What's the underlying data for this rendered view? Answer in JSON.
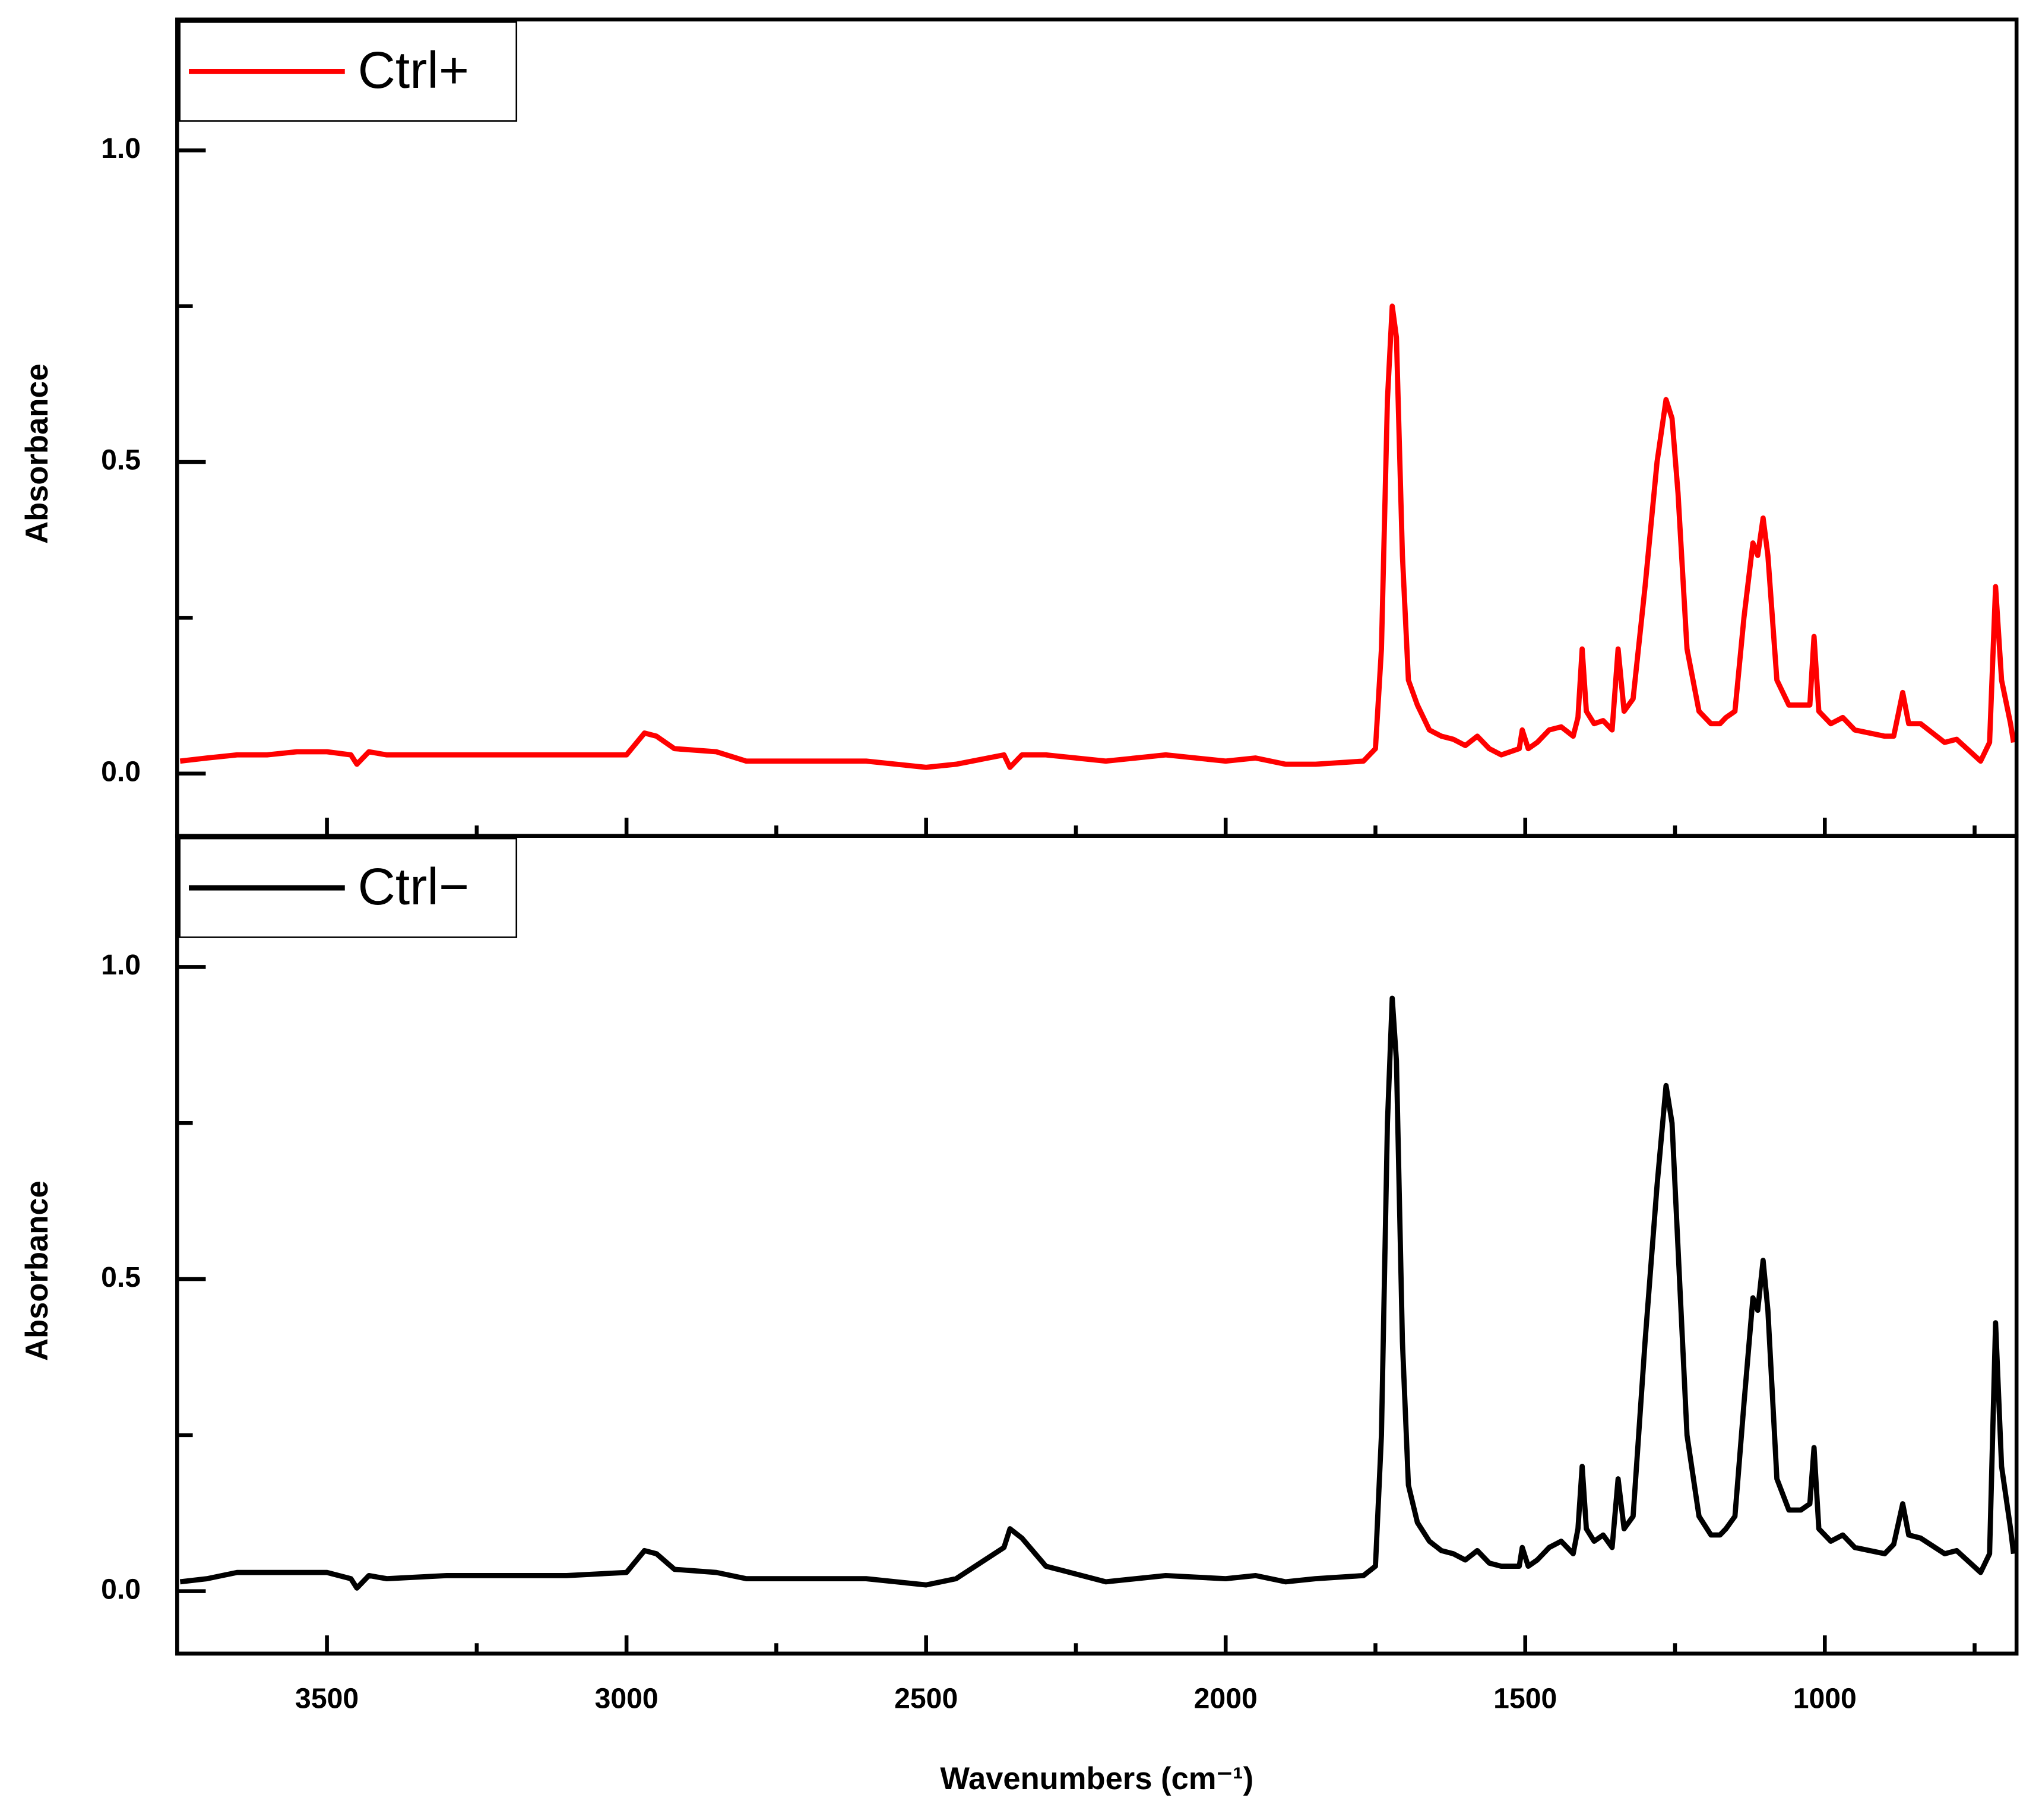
{
  "chart_data": [
    {
      "type": "line",
      "ylabel": "Absorbance",
      "legend": "upper left",
      "xlim": [
        3750,
        680
      ],
      "ylim": [
        -0.1,
        1.21
      ],
      "yticks": [
        {
          "value": 0,
          "label": "0.0"
        },
        {
          "value": 0.5,
          "label": "0.5"
        },
        {
          "value": 1,
          "label": "1.0"
        }
      ],
      "yminor": [
        0.25,
        0.75
      ],
      "x": [
        3745,
        3700,
        3650,
        3600,
        3550,
        3500,
        3460,
        3450,
        3430,
        3400,
        3300,
        3200,
        3100,
        3000,
        2970,
        2950,
        2920,
        2850,
        2800,
        2700,
        2600,
        2500,
        2450,
        2370,
        2360,
        2340,
        2300,
        2200,
        2100,
        2000,
        1950,
        1900,
        1850,
        1770,
        1750,
        1740,
        1730,
        1722,
        1715,
        1705,
        1695,
        1680,
        1660,
        1640,
        1620,
        1600,
        1580,
        1560,
        1540,
        1510,
        1505,
        1495,
        1480,
        1460,
        1440,
        1420,
        1412,
        1405,
        1398,
        1385,
        1370,
        1355,
        1345,
        1335,
        1320,
        1300,
        1280,
        1265,
        1255,
        1245,
        1230,
        1210,
        1190,
        1175,
        1165,
        1150,
        1135,
        1120,
        1112,
        1103,
        1095,
        1080,
        1060,
        1040,
        1025,
        1018,
        1010,
        990,
        970,
        950,
        900,
        885,
        870,
        860,
        840,
        800,
        780,
        740,
        725,
        715,
        705,
        690,
        685
      ],
      "series": [
        {
          "name": "Ctrl+",
          "color": "#ff0000",
          "values": [
            0.02,
            0.025,
            0.03,
            0.03,
            0.035,
            0.035,
            0.03,
            0.015,
            0.035,
            0.03,
            0.03,
            0.03,
            0.03,
            0.03,
            0.065,
            0.06,
            0.04,
            0.035,
            0.02,
            0.02,
            0.02,
            0.01,
            0.015,
            0.03,
            0.01,
            0.03,
            0.03,
            0.02,
            0.03,
            0.02,
            0.025,
            0.015,
            0.015,
            0.02,
            0.04,
            0.2,
            0.6,
            0.75,
            0.7,
            0.35,
            0.15,
            0.11,
            0.07,
            0.06,
            0.055,
            0.045,
            0.06,
            0.04,
            0.03,
            0.04,
            0.07,
            0.04,
            0.05,
            0.07,
            0.075,
            0.06,
            0.09,
            0.2,
            0.1,
            0.08,
            0.085,
            0.07,
            0.2,
            0.1,
            0.12,
            0.3,
            0.5,
            0.6,
            0.57,
            0.45,
            0.2,
            0.1,
            0.08,
            0.08,
            0.09,
            0.1,
            0.25,
            0.37,
            0.35,
            0.41,
            0.35,
            0.15,
            0.11,
            0.11,
            0.11,
            0.22,
            0.1,
            0.08,
            0.09,
            0.07,
            0.06,
            0.06,
            0.13,
            0.08,
            0.08,
            0.05,
            0.055,
            0.02,
            0.05,
            0.3,
            0.15,
            0.08,
            0.05
          ]
        }
      ]
    },
    {
      "type": "line",
      "ylabel": "Absorbance",
      "xlabel": "Wavenumbers (cm⁻¹)",
      "legend": "upper left",
      "xlim": [
        3750,
        680
      ],
      "ylim": [
        -0.1,
        1.21
      ],
      "yticks": [
        {
          "value": 0,
          "label": "0.0"
        },
        {
          "value": 0.5,
          "label": "0.5"
        },
        {
          "value": 1,
          "label": "1.0"
        }
      ],
      "yminor": [
        0.25,
        0.75
      ],
      "xticks": [
        3500,
        3000,
        2500,
        2000,
        1500,
        1000
      ],
      "xminor": [
        3250,
        2750,
        2250,
        1750,
        1250,
        750
      ],
      "x": [
        3745,
        3700,
        3650,
        3600,
        3550,
        3500,
        3460,
        3450,
        3430,
        3400,
        3300,
        3200,
        3100,
        3000,
        2970,
        2950,
        2920,
        2850,
        2800,
        2700,
        2600,
        2500,
        2450,
        2370,
        2360,
        2340,
        2300,
        2200,
        2100,
        2000,
        1950,
        1900,
        1850,
        1770,
        1750,
        1740,
        1730,
        1722,
        1715,
        1705,
        1695,
        1680,
        1660,
        1640,
        1620,
        1600,
        1580,
        1560,
        1540,
        1510,
        1505,
        1495,
        1480,
        1460,
        1440,
        1420,
        1412,
        1405,
        1398,
        1385,
        1370,
        1355,
        1345,
        1335,
        1320,
        1300,
        1280,
        1265,
        1255,
        1245,
        1230,
        1210,
        1190,
        1175,
        1165,
        1150,
        1135,
        1120,
        1112,
        1103,
        1095,
        1080,
        1060,
        1040,
        1025,
        1018,
        1010,
        990,
        970,
        950,
        900,
        885,
        870,
        860,
        840,
        800,
        780,
        740,
        725,
        715,
        705,
        690,
        685
      ],
      "series": [
        {
          "name": "Ctrl−",
          "color": "#000000",
          "values": [
            0.015,
            0.02,
            0.03,
            0.03,
            0.03,
            0.03,
            0.02,
            0.005,
            0.025,
            0.02,
            0.025,
            0.025,
            0.025,
            0.03,
            0.065,
            0.06,
            0.035,
            0.03,
            0.02,
            0.02,
            0.02,
            0.01,
            0.02,
            0.07,
            0.1,
            0.085,
            0.04,
            0.015,
            0.025,
            0.02,
            0.025,
            0.015,
            0.02,
            0.025,
            0.04,
            0.25,
            0.75,
            0.95,
            0.85,
            0.4,
            0.17,
            0.11,
            0.08,
            0.065,
            0.06,
            0.05,
            0.065,
            0.045,
            0.04,
            0.04,
            0.07,
            0.04,
            0.05,
            0.07,
            0.08,
            0.06,
            0.1,
            0.2,
            0.1,
            0.08,
            0.09,
            0.07,
            0.18,
            0.1,
            0.12,
            0.4,
            0.65,
            0.81,
            0.75,
            0.55,
            0.25,
            0.12,
            0.09,
            0.09,
            0.1,
            0.12,
            0.3,
            0.47,
            0.45,
            0.53,
            0.45,
            0.18,
            0.13,
            0.13,
            0.14,
            0.23,
            0.1,
            0.08,
            0.09,
            0.07,
            0.06,
            0.075,
            0.14,
            0.09,
            0.085,
            0.06,
            0.065,
            0.03,
            0.06,
            0.43,
            0.2,
            0.1,
            0.06
          ]
        }
      ]
    }
  ]
}
